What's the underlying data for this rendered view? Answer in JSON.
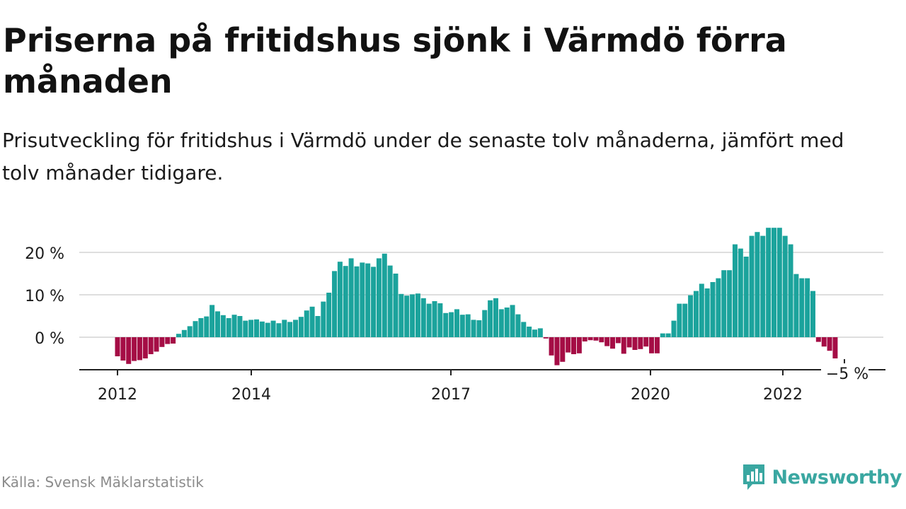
{
  "title": "Priserna på fritidshus sjönk i Värmdö förra månaden",
  "subtitle": "Prisutveckling för fritidshus i Värmdö under de senaste tolv månaderna, jämfört med tolv månader tidigare.",
  "source": "Källa: Svensk Mäklarstatistik",
  "brand": {
    "name": "Newsworthy",
    "icon": "newsworthy-logo-icon",
    "color": "#3aa7a1"
  },
  "colors": {
    "positive": "#1ba39c",
    "negative": "#a50d45",
    "grid": "#dedede",
    "axis": "#222222"
  },
  "chart_data": {
    "type": "bar",
    "title": "Priserna på fritidshus sjönk i Värmdö förra månaden",
    "subtitle": "Prisutveckling för fritidshus i Värmdö under de senaste tolv månaderna, jämfört med tolv månader tidigare.",
    "xlabel": "",
    "ylabel": "",
    "x_start": "2012-01",
    "frequency": "monthly",
    "x_ticks": [
      "2012",
      "2014",
      "2017",
      "2020",
      "2022"
    ],
    "y_ticks": [
      "20 %",
      "10 %",
      "0 %"
    ],
    "ylim": [
      -7,
      26
    ],
    "grid": true,
    "last_value_label": "−5 %",
    "values": [
      -4.5,
      -5.5,
      -6.3,
      -5.6,
      -5.4,
      -5.0,
      -4.0,
      -3.4,
      -2.3,
      -1.6,
      -1.5,
      0.8,
      1.7,
      2.6,
      3.8,
      4.5,
      4.9,
      7.6,
      6.1,
      5.2,
      4.5,
      5.3,
      5.0,
      3.9,
      4.1,
      4.2,
      3.7,
      3.4,
      3.9,
      3.3,
      4.1,
      3.6,
      4.1,
      4.8,
      6.3,
      7.2,
      5.0,
      8.4,
      10.5,
      15.6,
      17.8,
      16.8,
      18.6,
      16.7,
      17.6,
      17.4,
      16.6,
      18.6,
      19.7,
      16.9,
      15.0,
      10.2,
      9.8,
      10.1,
      10.3,
      9.2,
      7.9,
      8.5,
      8.0,
      5.7,
      5.9,
      6.6,
      5.3,
      5.4,
      4.1,
      4.0,
      6.4,
      8.7,
      9.2,
      6.6,
      7.0,
      7.6,
      5.4,
      3.6,
      2.5,
      1.8,
      2.1,
      -0.3,
      -4.3,
      -6.6,
      -5.8,
      -3.6,
      -4.0,
      -3.8,
      -1.0,
      -0.7,
      -0.8,
      -1.2,
      -2.1,
      -2.7,
      -1.4,
      -3.9,
      -2.4,
      -3.0,
      -2.8,
      -2.2,
      -3.8,
      -3.8,
      0.9,
      0.9,
      3.9,
      7.9,
      7.9,
      9.9,
      10.9,
      12.6,
      11.5,
      13.0,
      13.9,
      15.8,
      15.8,
      21.9,
      20.9,
      19.0,
      23.9,
      24.8,
      23.9,
      25.8,
      25.8,
      25.8,
      23.9,
      21.9,
      14.9,
      13.9,
      13.9,
      10.9,
      -1.1,
      -2.2,
      -3.2,
      -5.0
    ]
  }
}
